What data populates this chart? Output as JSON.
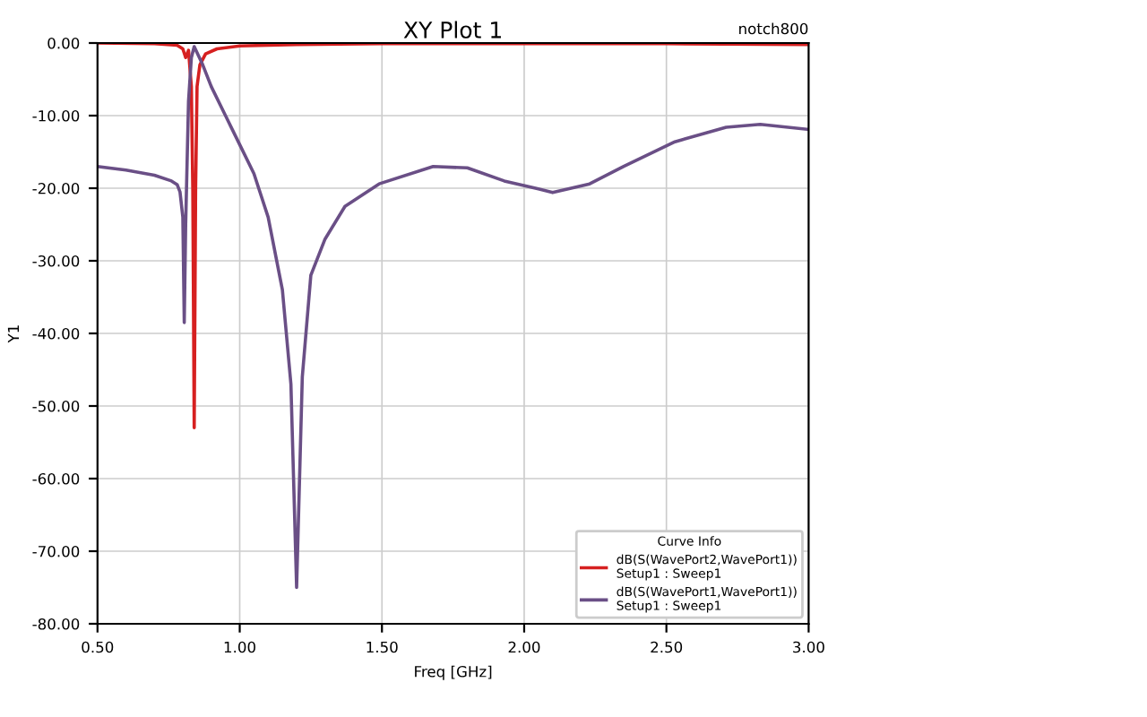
{
  "chart_data": {
    "type": "line",
    "title": "XY Plot 1",
    "xlabel": "Freq [GHz]",
    "ylabel": "Y1",
    "legend_title": "Curve Info",
    "annotations": [
      "notch800"
    ],
    "xlim": [
      0.5,
      3.0
    ],
    "xticks": [
      {
        "value": 0.5,
        "label": "0.50"
      },
      {
        "value": 1.0,
        "label": "1.00"
      },
      {
        "value": 1.5,
        "label": "1.50"
      },
      {
        "value": 2.0,
        "label": "2.00"
      },
      {
        "value": 2.5,
        "label": "2.50"
      },
      {
        "value": 3.0,
        "label": "3.00"
      }
    ],
    "ylim": [
      -80,
      0
    ],
    "yticks": [
      {
        "value": 0,
        "label": "0.00"
      },
      {
        "value": -10,
        "label": "-10.00"
      },
      {
        "value": -20,
        "label": "-20.00"
      },
      {
        "value": -30,
        "label": "-30.00"
      },
      {
        "value": -40,
        "label": "-40.00"
      },
      {
        "value": -50,
        "label": "-50.00"
      },
      {
        "value": -60,
        "label": "-60.00"
      },
      {
        "value": -70,
        "label": "-70.00"
      },
      {
        "value": -80,
        "label": "-80.00"
      }
    ],
    "grid": true,
    "legend": "bottom right",
    "marker": "none",
    "line_style": "solid",
    "series": [
      {
        "name": "dB(S(WavePort2,WavePort1))\nSetup1 : Sweep1",
        "color": "#d62020",
        "x": [
          0.5,
          0.7,
          0.78,
          0.8,
          0.81,
          0.82,
          0.83,
          0.835,
          0.84,
          0.845,
          0.85,
          0.86,
          0.88,
          0.92,
          1.0,
          1.2,
          1.5,
          2.0,
          2.5,
          3.0
        ],
        "values": [
          0,
          -0.1,
          -0.3,
          -0.8,
          -2,
          -1,
          -6,
          -20,
          -53,
          -20,
          -6,
          -3,
          -1.5,
          -0.8,
          -0.4,
          -0.2,
          -0.1,
          -0.1,
          -0.1,
          -0.2
        ]
      },
      {
        "name": "dB(S(WavePort1,WavePort1))\nSetup1 : Sweep1",
        "color": "#6a4f86",
        "x": [
          0.5,
          0.6,
          0.7,
          0.76,
          0.78,
          0.79,
          0.8,
          0.805,
          0.81,
          0.82,
          0.83,
          0.84,
          0.87,
          0.9,
          0.95,
          1.0,
          1.05,
          1.1,
          1.15,
          1.18,
          1.2,
          1.22,
          1.25,
          1.3,
          1.37,
          1.49,
          1.68,
          1.8,
          1.93,
          2.05,
          2.1,
          2.23,
          2.35,
          2.53,
          2.71,
          2.83,
          3.0
        ],
        "values": [
          -17,
          -17.5,
          -18.2,
          -19,
          -19.5,
          -20.5,
          -24,
          -38.5,
          -25,
          -8,
          -2,
          -0.5,
          -3,
          -6,
          -10,
          -14,
          -18,
          -24,
          -34,
          -47,
          -75,
          -46,
          -32,
          -27,
          -22.5,
          -19.4,
          -17,
          -17.2,
          -19,
          -20.1,
          -20.6,
          -19.4,
          -17,
          -13.6,
          -11.6,
          -11.2,
          -11.9
        ]
      }
    ]
  }
}
